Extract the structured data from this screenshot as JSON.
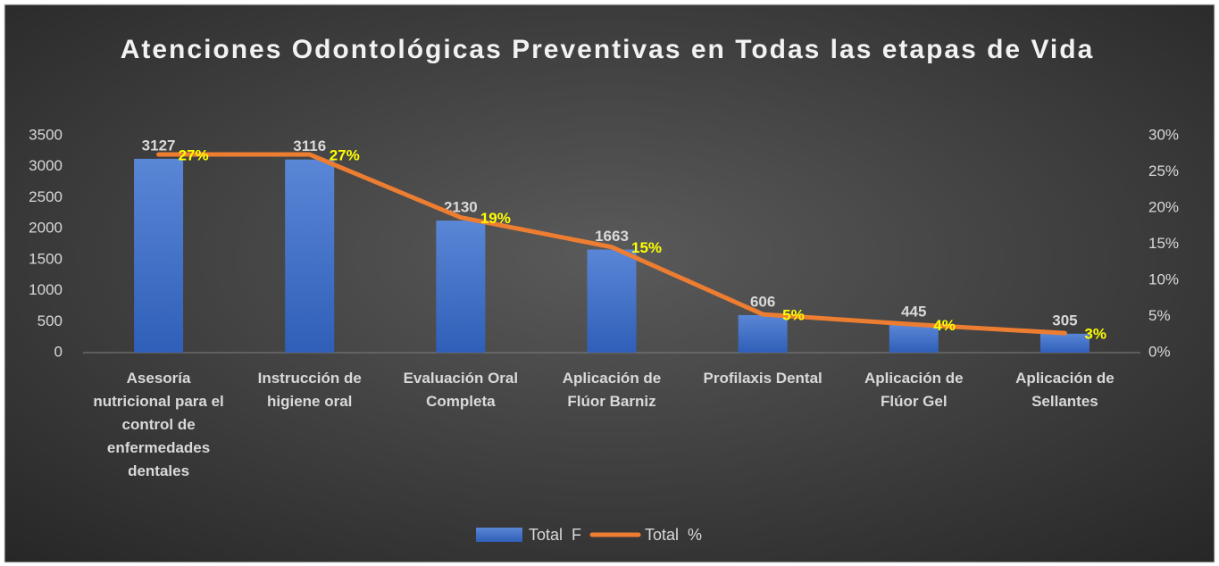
{
  "chart_data": {
    "type": "bar-line",
    "title": "Atenciones Odontológicas Preventivas en Todas las etapas de Vida",
    "categories": [
      "Asesoría nutricional para el control de enfermedades dentales",
      "Instrucción de higiene oral",
      "Evaluación Oral Completa",
      "Aplicación de Flúor Barniz",
      "Profilaxis Dental",
      "Aplicación de Flúor Gel",
      "Aplicación de Sellantes"
    ],
    "series": [
      {
        "name": "Total  F",
        "type": "bar",
        "color": "#4472c4",
        "values": [
          3127,
          3116,
          2130,
          1663,
          606,
          445,
          305
        ]
      },
      {
        "name": "Total  %",
        "type": "line",
        "axis": "y2",
        "color": "#ed7d31",
        "values": [
          27.4,
          27.4,
          18.7,
          14.6,
          5.3,
          3.9,
          2.7
        ],
        "value_labels": [
          "27%",
          "27%",
          "19%",
          "15%",
          "5%",
          "4%",
          "3%"
        ]
      }
    ],
    "ylim": [
      0,
      3500
    ],
    "yticks": [
      0,
      500,
      1000,
      1500,
      2000,
      2500,
      3000,
      3500
    ],
    "y2lim": [
      0,
      30
    ],
    "y2ticks": [
      {
        "value": 0,
        "label": "0%"
      },
      {
        "value": 5,
        "label": "5%"
      },
      {
        "value": 10,
        "label": "10%"
      },
      {
        "value": 15,
        "label": "15%"
      },
      {
        "value": 20,
        "label": "20%"
      },
      {
        "value": 25,
        "label": "25%"
      },
      {
        "value": 30,
        "label": "30%"
      }
    ],
    "legend": "bottom"
  }
}
